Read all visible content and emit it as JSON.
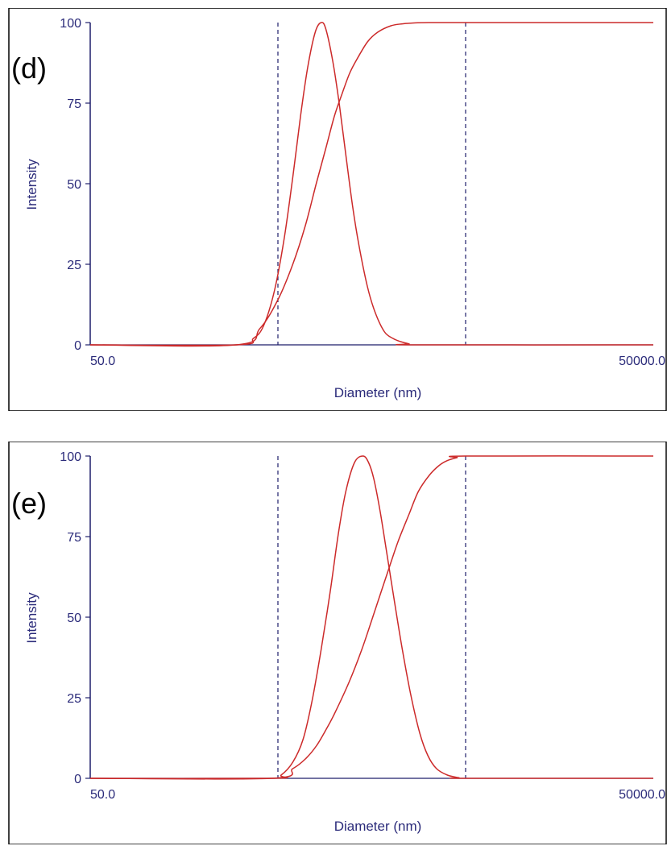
{
  "colors": {
    "curve": "#cc2a2a",
    "axis": "#1f1f6b",
    "text": "#2b2b7a",
    "frame": "#000000",
    "guide": "#1f1f6b"
  },
  "chart_data": [
    {
      "type": "line",
      "panel_label": "(d)",
      "title": "",
      "xlabel": "Diameter (nm)",
      "ylabel": "Intensity",
      "x_scale": "log",
      "xlim": [
        50,
        50000
      ],
      "ylim": [
        0,
        100
      ],
      "x_tick_labels": [
        "50.0",
        "50000.0"
      ],
      "y_ticks": [
        0,
        25,
        50,
        75,
        100
      ],
      "y_tick_labels": [
        "0",
        "25",
        "50",
        "75",
        "100"
      ],
      "guide_lines_x": [
        500,
        5000
      ],
      "grid": false,
      "legend": "none",
      "series": [
        {
          "kind": "distribution",
          "x": [
            300,
            370,
            420,
            480,
            540,
            600,
            660,
            720,
            790,
            850,
            900,
            980,
            1060,
            1150,
            1250,
            1350,
            1500,
            1650,
            1850,
            2050,
            2250,
            2500,
            2700
          ],
          "y": [
            0,
            2,
            6,
            17,
            33,
            52,
            71,
            86,
            97,
            100,
            98,
            88,
            75,
            59,
            43,
            31,
            18,
            10,
            4,
            2,
            1,
            0.3,
            0
          ]
        },
        {
          "kind": "cumulative",
          "x": [
            300,
            400,
            500,
            600,
            700,
            800,
            900,
            1000,
            1100,
            1200,
            1300,
            1500,
            1700,
            2000,
            2300,
            2700,
            3200,
            3800,
            4500,
            50000
          ],
          "y": [
            0,
            5,
            14,
            25,
            37,
            50,
            61,
            71,
            78,
            84,
            88,
            94,
            97,
            99,
            99.6,
            99.9,
            100,
            100,
            100,
            100
          ]
        }
      ]
    },
    {
      "type": "line",
      "panel_label": "(e)",
      "title": "",
      "xlabel": "Diameter (nm)",
      "ylabel": "Intensity",
      "x_scale": "log",
      "xlim": [
        50,
        50000
      ],
      "ylim": [
        0,
        100
      ],
      "x_tick_labels": [
        "50.0",
        "50000.0"
      ],
      "y_ticks": [
        0,
        25,
        50,
        75,
        100
      ],
      "y_tick_labels": [
        "0",
        "25",
        "50",
        "75",
        "100"
      ],
      "guide_lines_x": [
        500,
        5000
      ],
      "grid": false,
      "legend": "none",
      "series": [
        {
          "kind": "distribution",
          "x": [
            460,
            520,
            600,
            680,
            760,
            850,
            950,
            1050,
            1150,
            1280,
            1420,
            1520,
            1620,
            1750,
            1900,
            2100,
            2300,
            2550,
            2850,
            3150,
            3500,
            4000,
            4600,
            5000
          ],
          "y": [
            0,
            1,
            5,
            12,
            24,
            40,
            58,
            76,
            89,
            98,
            100,
            98,
            93,
            83,
            70,
            54,
            40,
            26,
            14,
            7,
            3,
            1,
            0.2,
            0
          ]
        },
        {
          "kind": "cumulative",
          "x": [
            460,
            600,
            700,
            800,
            900,
            1000,
            1200,
            1400,
            1600,
            1800,
            2000,
            2200,
            2500,
            2800,
            3200,
            3600,
            4000,
            4500,
            5000,
            50000
          ],
          "y": [
            0,
            3,
            6,
            10,
            15,
            20,
            30,
            40,
            50,
            59,
            67,
            74,
            82,
            89,
            94,
            97,
            98.6,
            99.5,
            100,
            100
          ]
        }
      ]
    }
  ]
}
